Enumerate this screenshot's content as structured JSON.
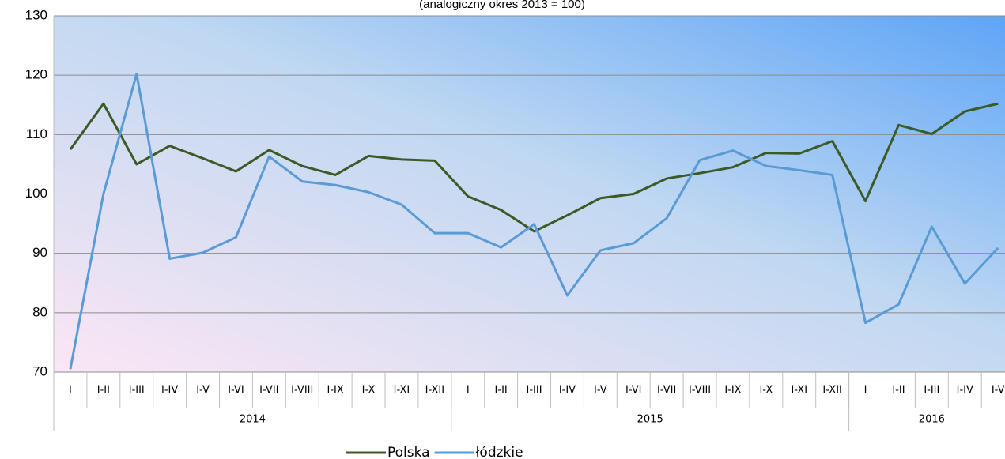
{
  "chart_data": {
    "type": "line",
    "subtitle": "(analogiczny okres 2013 = 100)",
    "categories": [
      "I",
      "I-II",
      "I-III",
      "I-IV",
      "I-V",
      "I-VI",
      "I-VII",
      "I-VIII",
      "I-IX",
      "I-X",
      "I-XI",
      "I-XII",
      "I",
      "I-II",
      "I-III",
      "I-IV",
      "I-V",
      "I-VI",
      "I-VII",
      "I-VIII",
      "I-IX",
      "I-X",
      "I-XI",
      "I-XII",
      "I",
      "I-II",
      "I-III",
      "I-IV",
      "I-V"
    ],
    "groups": [
      {
        "label": "2014",
        "count": 12
      },
      {
        "label": "2015",
        "count": 12
      },
      {
        "label": "2016",
        "count": 5
      }
    ],
    "series": [
      {
        "name": "Polska",
        "color": "#3b5a26",
        "values": [
          107.5,
          115.2,
          105,
          108.1,
          106,
          103.8,
          107.4,
          104.7,
          103.2,
          106.4,
          105.8,
          105.6,
          99.6,
          97.3,
          93.7,
          96.4,
          99.3,
          100,
          102.6,
          103.5,
          104.5,
          106.9,
          106.8,
          108.9,
          98.8,
          111.6,
          110.1,
          113.9,
          115.2
        ]
      },
      {
        "name": "łódzkie",
        "color": "#5b9bd5",
        "values": [
          70.5,
          100,
          120.2,
          89.1,
          90.1,
          92.7,
          106.3,
          102.1,
          101.5,
          100.3,
          98.2,
          93.4,
          93.4,
          91,
          94.9,
          82.9,
          90.5,
          91.7,
          95.9,
          105.7,
          107.3,
          104.7,
          104,
          103.2,
          78.3,
          81.4,
          94.5,
          84.9,
          90.9
        ]
      }
    ],
    "ylim": [
      70,
      130
    ],
    "yticks": [
      70,
      80,
      90,
      100,
      110,
      120,
      130
    ],
    "grid": true,
    "legend": "bottom"
  }
}
